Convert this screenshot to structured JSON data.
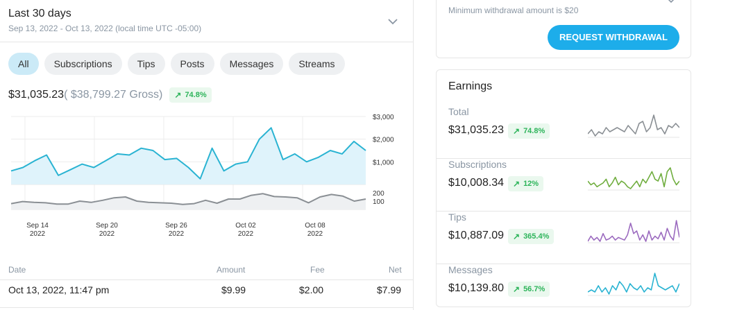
{
  "period": {
    "title": "Last 30 days",
    "subtitle": "Sep 13, 2022 - Oct 13, 2022 (local time UTC -05:00)"
  },
  "tabs": [
    {
      "label": "All",
      "active": true
    },
    {
      "label": "Subscriptions",
      "active": false
    },
    {
      "label": "Tips",
      "active": false
    },
    {
      "label": "Posts",
      "active": false
    },
    {
      "label": "Messages",
      "active": false
    },
    {
      "label": "Streams",
      "active": false
    }
  ],
  "summary": {
    "net": "$31,035.23",
    "gross": "( $38,799.27 Gross)",
    "change": "74.8%"
  },
  "chart_data": {
    "type": "area",
    "x_tick_labels": [
      {
        "day": "Sep 14",
        "year": "2022"
      },
      {
        "day": "Sep 20",
        "year": "2022"
      },
      {
        "day": "Sep 26",
        "year": "2022"
      },
      {
        "day": "Oct 02",
        "year": "2022"
      },
      {
        "day": "Oct 08",
        "year": "2022"
      }
    ],
    "upper_series": {
      "y_tick_labels": [
        "$3,000",
        "$2,000",
        "$1,000"
      ],
      "y_ticks": [
        3000,
        2000,
        1000
      ],
      "ylim": [
        0,
        3000
      ],
      "values": [
        600,
        750,
        1050,
        1300,
        400,
        650,
        900,
        750,
        1050,
        1350,
        1300,
        1600,
        1500,
        1100,
        1150,
        750,
        250,
        1600,
        600,
        900,
        1000,
        2000,
        2500,
        1100,
        1350,
        1000,
        1200,
        1500,
        1350,
        1900,
        1500
      ],
      "color": "#29b3d2",
      "fill": "#dff3fb"
    },
    "lower_series": {
      "y_tick_labels": [
        "200",
        "100"
      ],
      "y_ticks": [
        200,
        100
      ],
      "ylim": [
        0,
        250
      ],
      "values": [
        70,
        95,
        85,
        80,
        65,
        65,
        100,
        85,
        110,
        140,
        150,
        100,
        85,
        80,
        75,
        60,
        70,
        110,
        75,
        125,
        125,
        170,
        190,
        155,
        150,
        140,
        80,
        150,
        180,
        160,
        100,
        125
      ],
      "color": "#8a8f94",
      "fill": "#eef0f2"
    },
    "grid": true
  },
  "table": {
    "headers": {
      "date": "Date",
      "amount": "Amount",
      "fee": "Fee",
      "net": "Net"
    },
    "rows": [
      {
        "date": "Oct 13, 2022, 11:47 pm",
        "amount": "$9.99",
        "fee": "$2.00",
        "net": "$7.99"
      }
    ]
  },
  "withdraw": {
    "min_text": "Minimum withdrawal amount is $20",
    "button": "REQUEST WITHDRAWAL"
  },
  "earnings": {
    "title": "Earnings",
    "rows": [
      {
        "label": "Total",
        "value": "$31,035.23",
        "change": "74.8%",
        "color": "#8a8f94",
        "spark": [
          3,
          5,
          2,
          4,
          3,
          6,
          4,
          5,
          6,
          5,
          4,
          7,
          5,
          3,
          8,
          9,
          4,
          6,
          12,
          5,
          6,
          3,
          7,
          6,
          8,
          6
        ]
      },
      {
        "label": "Subscriptions",
        "value": "$10,008.34",
        "change": "12%",
        "color": "#6fad3e",
        "spark": [
          8,
          6,
          7,
          5,
          6,
          7,
          9,
          5,
          7,
          10,
          6,
          8,
          7,
          5,
          4,
          6,
          8,
          5,
          9,
          7,
          10,
          13,
          9,
          8,
          12,
          5,
          13,
          15,
          9,
          6,
          8
        ]
      },
      {
        "label": "Tips",
        "value": "$10,887.09",
        "change": "365.4%",
        "color": "#9b6abf",
        "spark": [
          2,
          6,
          3,
          5,
          2,
          8,
          3,
          4,
          6,
          3,
          5,
          4,
          3,
          7,
          16,
          8,
          10,
          3,
          7,
          2,
          10,
          3,
          6,
          4,
          9,
          3,
          12,
          6,
          3,
          18,
          5
        ]
      },
      {
        "label": "Messages",
        "value": "$10,139.80",
        "change": "56.7%",
        "color": "#29b3d2",
        "spark": [
          3,
          4,
          3,
          6,
          3,
          5,
          2,
          6,
          4,
          8,
          6,
          3,
          7,
          5,
          4,
          6,
          3,
          5,
          4,
          12,
          6,
          5,
          4,
          5,
          6,
          3,
          7
        ]
      }
    ]
  }
}
